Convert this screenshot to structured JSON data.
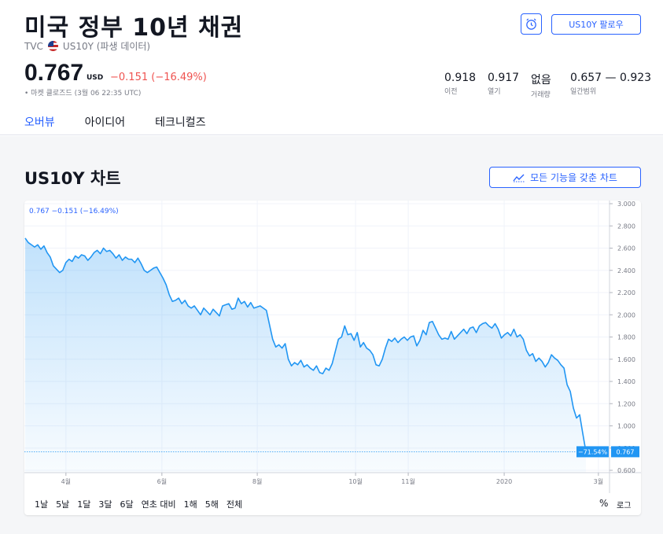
{
  "header": {
    "title": "미국 정부 10년 채권",
    "exchange": "TVC",
    "symbol": "US10Y (파생 데이터)",
    "follow_label": "US10Y 팔로우"
  },
  "quote": {
    "price": "0.767",
    "currency": "USD",
    "change": "−0.151 (−16.49%)",
    "market_status": "• 마켓 클로즈드 (3월 06 22:35 UTC)"
  },
  "stats": [
    {
      "value": "0.918",
      "label": "이전"
    },
    {
      "value": "0.917",
      "label": "열기"
    },
    {
      "value": "없음",
      "label": "거래량"
    },
    {
      "value": "0.657 — 0.923",
      "label": "일간범위"
    }
  ],
  "tabs": [
    "오버뷰",
    "아이디어",
    "테크니컬즈"
  ],
  "chart_section": {
    "title": "US10Y 차트",
    "full_chart_label": "모든 기능을 갖춘 차트",
    "legend": "0.767  −0.151 (−16.49%)",
    "timeframes": [
      "1날",
      "5날",
      "1달",
      "3달",
      "6달",
      "연초 대비",
      "1해",
      "5해",
      "전체"
    ],
    "percent_label": "%",
    "log_label": "로그",
    "pct_badge": "−71.54%",
    "price_badge": "0.767"
  },
  "colors": {
    "accent": "#2962ff",
    "line": "#2196f3",
    "negative": "#ef5350"
  },
  "chart_data": {
    "type": "area",
    "series_label": "US10Y",
    "ylim": [
      0.6,
      3.0
    ],
    "y_ticks": [
      "3.000",
      "2.800",
      "2.600",
      "2.400",
      "2.200",
      "2.000",
      "1.800",
      "1.600",
      "1.400",
      "1.200",
      "1.000",
      "0.800",
      "0.600"
    ],
    "x_ticks": [
      {
        "label": "4월",
        "t": 0.071
      },
      {
        "label": "6월",
        "t": 0.235
      },
      {
        "label": "8월",
        "t": 0.398
      },
      {
        "label": "10월",
        "t": 0.566
      },
      {
        "label": "11월",
        "t": 0.656
      },
      {
        "label": "2020",
        "t": 0.82
      },
      {
        "label": "3월",
        "t": 0.981
      }
    ],
    "values": [
      2.69,
      2.65,
      2.63,
      2.61,
      2.63,
      2.59,
      2.62,
      2.56,
      2.52,
      2.44,
      2.41,
      2.38,
      2.4,
      2.47,
      2.5,
      2.48,
      2.53,
      2.51,
      2.54,
      2.53,
      2.49,
      2.52,
      2.56,
      2.58,
      2.55,
      2.6,
      2.57,
      2.58,
      2.55,
      2.51,
      2.54,
      2.49,
      2.52,
      2.5,
      2.5,
      2.47,
      2.51,
      2.46,
      2.4,
      2.38,
      2.4,
      2.42,
      2.43,
      2.38,
      2.33,
      2.27,
      2.18,
      2.12,
      2.13,
      2.15,
      2.1,
      2.13,
      2.08,
      2.06,
      2.08,
      2.04,
      2.0,
      2.06,
      2.03,
      2.0,
      2.05,
      2.02,
      1.99,
      2.08,
      2.09,
      2.1,
      2.05,
      2.06,
      2.15,
      2.1,
      2.12,
      2.07,
      2.11,
      2.06,
      2.07,
      2.08,
      2.06,
      2.04,
      1.91,
      1.78,
      1.71,
      1.73,
      1.7,
      1.74,
      1.6,
      1.54,
      1.57,
      1.55,
      1.59,
      1.53,
      1.55,
      1.52,
      1.5,
      1.54,
      1.48,
      1.47,
      1.52,
      1.5,
      1.56,
      1.67,
      1.78,
      1.8,
      1.9,
      1.82,
      1.83,
      1.77,
      1.84,
      1.71,
      1.75,
      1.7,
      1.68,
      1.64,
      1.55,
      1.54,
      1.6,
      1.7,
      1.78,
      1.76,
      1.79,
      1.75,
      1.78,
      1.8,
      1.77,
      1.8,
      1.81,
      1.72,
      1.77,
      1.86,
      1.82,
      1.93,
      1.94,
      1.88,
      1.82,
      1.78,
      1.79,
      1.78,
      1.85,
      1.78,
      1.81,
      1.84,
      1.87,
      1.83,
      1.88,
      1.89,
      1.84,
      1.9,
      1.92,
      1.93,
      1.9,
      1.88,
      1.92,
      1.87,
      1.79,
      1.82,
      1.84,
      1.81,
      1.87,
      1.8,
      1.82,
      1.78,
      1.68,
      1.63,
      1.65,
      1.58,
      1.61,
      1.58,
      1.53,
      1.57,
      1.64,
      1.61,
      1.59,
      1.55,
      1.52,
      1.37,
      1.31,
      1.16,
      1.07,
      1.1,
      0.93,
      0.767
    ]
  }
}
